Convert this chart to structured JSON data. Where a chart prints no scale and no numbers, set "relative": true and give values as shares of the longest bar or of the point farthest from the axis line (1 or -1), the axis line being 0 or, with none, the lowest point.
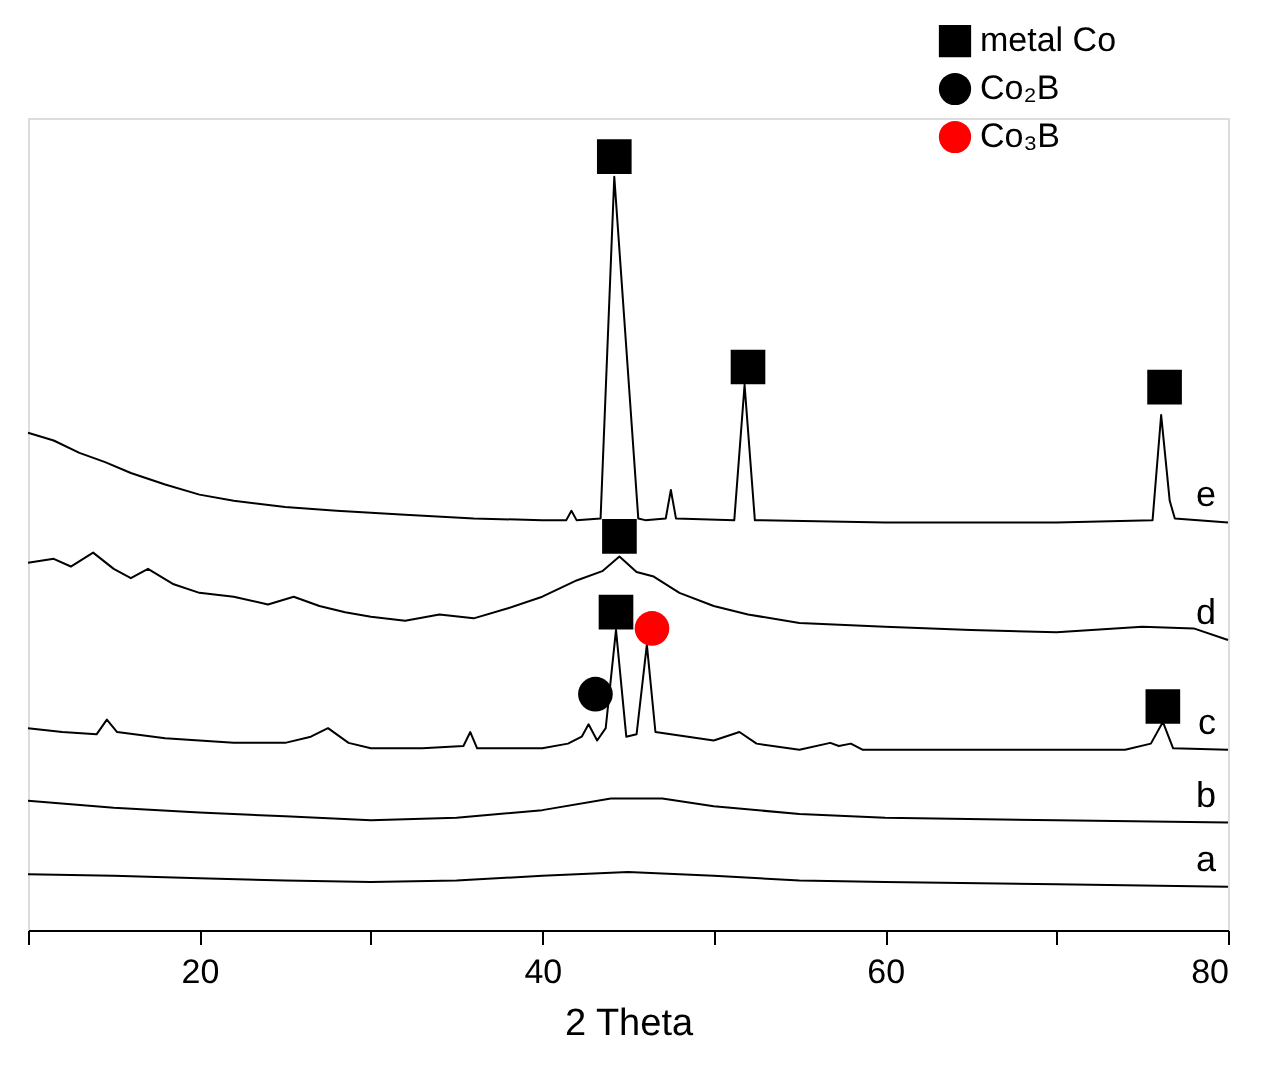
{
  "chart_data": {
    "type": "line",
    "relative": true,
    "xlabel": "2 Theta",
    "xlim": [
      10,
      80
    ],
    "xticks": [
      {
        "value": 10,
        "label": null
      },
      20,
      {
        "value": 30,
        "label": null
      },
      40,
      {
        "value": 50,
        "label": null
      },
      60,
      {
        "value": 70,
        "label": null
      },
      80
    ],
    "grid": false,
    "legend": "top right",
    "tick_labels": "x",
    "line_style": "solid",
    "marker": "none",
    "series": [
      {
        "name": "a",
        "color": "#000000",
        "x": [
          10,
          15,
          20,
          25,
          30,
          35,
          40,
          45,
          50,
          55,
          60,
          70,
          80
        ],
        "values": [
          0.072,
          0.07,
          0.067,
          0.064,
          0.062,
          0.064,
          0.07,
          0.075,
          0.07,
          0.064,
          0.062,
          0.059,
          0.056
        ]
      },
      {
        "name": "b",
        "color": "#000000",
        "x": [
          10,
          15,
          20,
          25,
          30,
          35,
          40,
          44,
          47,
          50,
          55,
          60,
          70,
          80
        ],
        "values": [
          0.167,
          0.158,
          0.152,
          0.147,
          0.142,
          0.145,
          0.155,
          0.17,
          0.17,
          0.16,
          0.15,
          0.145,
          0.142,
          0.139
        ]
      },
      {
        "name": "c",
        "color": "#000000",
        "x": [
          10,
          12,
          14,
          14.6,
          15.2,
          18,
          22,
          25,
          26.5,
          27.5,
          28.7,
          30,
          33,
          35.4,
          35.8,
          36.2,
          40,
          41.5,
          42.3,
          42.7,
          43.2,
          43.7,
          44.3,
          44.9,
          45.5,
          46.1,
          46.6,
          47.5,
          50,
          51.5,
          52.5,
          55,
          56.8,
          57.3,
          58,
          58.7,
          65,
          74,
          75.5,
          76.2,
          76.8,
          80
        ],
        "values": [
          0.261,
          0.256,
          0.253,
          0.272,
          0.256,
          0.248,
          0.242,
          0.242,
          0.25,
          0.261,
          0.242,
          0.235,
          0.235,
          0.238,
          0.256,
          0.235,
          0.235,
          0.241,
          0.25,
          0.266,
          0.245,
          0.261,
          0.388,
          0.25,
          0.253,
          0.369,
          0.256,
          0.253,
          0.245,
          0.256,
          0.241,
          0.233,
          0.242,
          0.238,
          0.241,
          0.233,
          0.233,
          0.233,
          0.241,
          0.269,
          0.235,
          0.233
        ]
      },
      {
        "name": "d",
        "color": "#000000",
        "x": [
          10,
          11.5,
          12.5,
          13.8,
          15,
          16,
          17,
          18.5,
          20,
          22,
          24,
          25.5,
          27,
          28.5,
          30,
          32,
          34,
          36,
          38,
          40,
          42,
          43.5,
          44.5,
          45.5,
          46.5,
          48,
          50,
          52,
          55,
          60,
          65,
          70,
          75,
          78,
          80
        ],
        "values": [
          0.475,
          0.48,
          0.47,
          0.488,
          0.467,
          0.455,
          0.467,
          0.447,
          0.436,
          0.431,
          0.421,
          0.431,
          0.419,
          0.411,
          0.405,
          0.4,
          0.408,
          0.403,
          0.416,
          0.431,
          0.452,
          0.464,
          0.483,
          0.463,
          0.457,
          0.436,
          0.419,
          0.408,
          0.397,
          0.392,
          0.388,
          0.385,
          0.392,
          0.39,
          0.375
        ]
      },
      {
        "name": "e",
        "color": "#000000",
        "x": [
          10,
          11.5,
          13,
          14.5,
          16,
          18,
          20,
          22,
          25,
          28,
          32,
          36,
          40,
          41.4,
          41.7,
          42,
          43.4,
          44.2,
          45.6,
          46,
          47.2,
          47.5,
          47.8,
          51.2,
          51.8,
          52.4,
          60,
          70,
          75.6,
          76.1,
          76.6,
          76.9,
          80
        ],
        "values": [
          0.643,
          0.633,
          0.617,
          0.605,
          0.591,
          0.576,
          0.563,
          0.555,
          0.547,
          0.542,
          0.537,
          0.532,
          0.53,
          0.53,
          0.542,
          0.53,
          0.532,
          0.974,
          0.532,
          0.53,
          0.532,
          0.569,
          0.532,
          0.53,
          0.705,
          0.53,
          0.527,
          0.527,
          0.53,
          0.666,
          0.555,
          0.532,
          0.527
        ]
      },
      {
        "name": "metal Co",
        "type": "scatter",
        "marker": "square",
        "color": "#000000",
        "x": [
          44.2,
          52.0,
          76.3,
          44.5,
          44.3,
          76.2
        ],
        "values": [
          1.0,
          0.728,
          0.702,
          0.509,
          0.411,
          0.289
        ]
      },
      {
        "name": "Co₂B",
        "type": "scatter",
        "marker": "circle",
        "color": "#000000",
        "x": [
          43.1
        ],
        "values": [
          0.305
        ]
      },
      {
        "name": "Co₃B",
        "type": "scatter",
        "marker": "circle",
        "color": "#ff0000",
        "x": [
          46.4
        ],
        "values": [
          0.39
        ]
      }
    ]
  }
}
